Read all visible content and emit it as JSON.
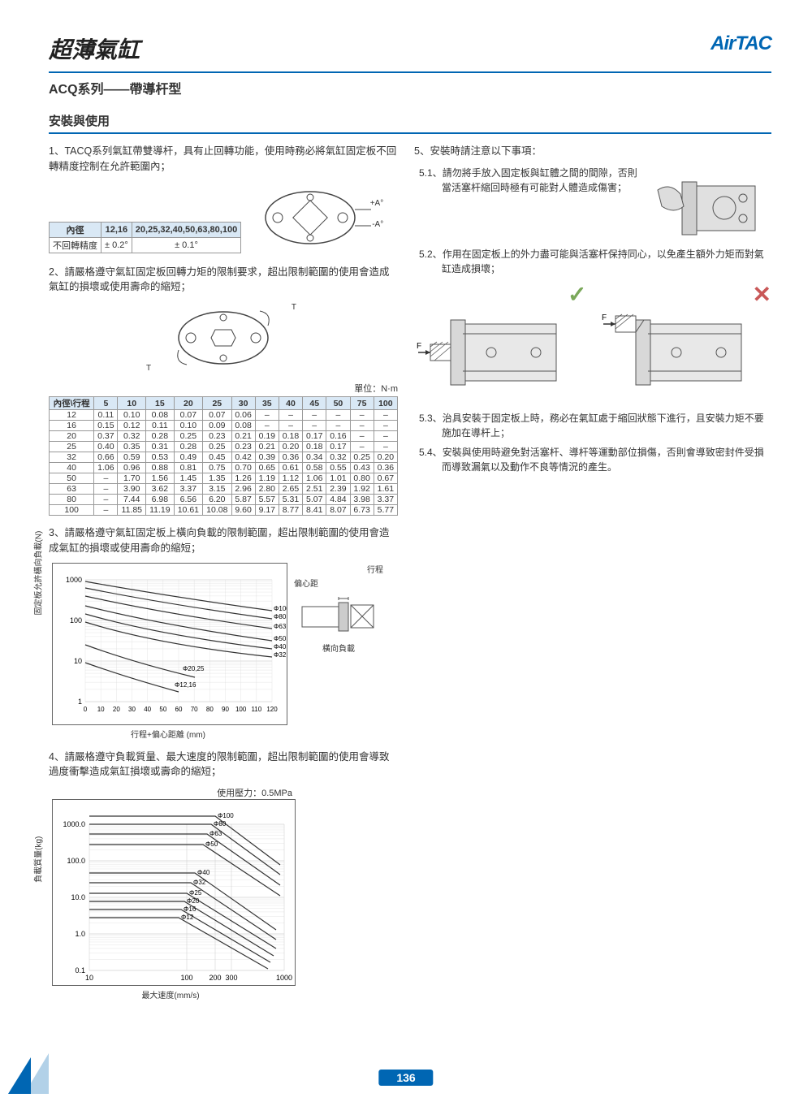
{
  "header": {
    "title": "超薄氣缸",
    "logo": "AirTAC"
  },
  "subtitle": "ACQ系列——帶導杆型",
  "section_title": "安裝與使用",
  "item1": {
    "num": "1、",
    "text": "TACQ系列氣缸帶雙導杆，具有止回轉功能，使用時務必將氣缸固定板不回轉精度控制在允許範圍內；",
    "table": {
      "h1": "內徑",
      "c1": "12,16",
      "c2": "20,25,32,40,50,63,80,100",
      "r1": "不回轉精度",
      "v1": "± 0.2°",
      "v2": "± 0.1°"
    },
    "diag_labels": {
      "a_plus": "+A°",
      "a_minus": "-A°"
    }
  },
  "item2": {
    "num": "2、",
    "text": "請嚴格遵守氣缸固定板回轉力矩的限制要求，超出限制範圍的使用會造成氣缸的損壞或使用壽命的縮短；",
    "unit": "單位：N·m",
    "diag_labels": {
      "t1": "T",
      "t2": "T"
    },
    "table": {
      "header": [
        "內徑\\行程",
        "5",
        "10",
        "15",
        "20",
        "25",
        "30",
        "35",
        "40",
        "45",
        "50",
        "75",
        "100"
      ],
      "rows": [
        [
          "12",
          "0.11",
          "0.10",
          "0.08",
          "0.07",
          "0.07",
          "0.06",
          "–",
          "–",
          "–",
          "–",
          "–",
          "–"
        ],
        [
          "16",
          "0.15",
          "0.12",
          "0.11",
          "0.10",
          "0.09",
          "0.08",
          "–",
          "–",
          "–",
          "–",
          "–",
          "–"
        ],
        [
          "20",
          "0.37",
          "0.32",
          "0.28",
          "0.25",
          "0.23",
          "0.21",
          "0.19",
          "0.18",
          "0.17",
          "0.16",
          "–",
          "–"
        ],
        [
          "25",
          "0.40",
          "0.35",
          "0.31",
          "0.28",
          "0.25",
          "0.23",
          "0.21",
          "0.20",
          "0.18",
          "0.17",
          "–",
          "–"
        ],
        [
          "32",
          "0.66",
          "0.59",
          "0.53",
          "0.49",
          "0.45",
          "0.42",
          "0.39",
          "0.36",
          "0.34",
          "0.32",
          "0.25",
          "0.20"
        ],
        [
          "40",
          "1.06",
          "0.96",
          "0.88",
          "0.81",
          "0.75",
          "0.70",
          "0.65",
          "0.61",
          "0.58",
          "0.55",
          "0.43",
          "0.36"
        ],
        [
          "50",
          "–",
          "1.70",
          "1.56",
          "1.45",
          "1.35",
          "1.26",
          "1.19",
          "1.12",
          "1.06",
          "1.01",
          "0.80",
          "0.67"
        ],
        [
          "63",
          "–",
          "3.90",
          "3.62",
          "3.37",
          "3.15",
          "2.96",
          "2.80",
          "2.65",
          "2.51",
          "2.39",
          "1.92",
          "1.61"
        ],
        [
          "80",
          "–",
          "7.44",
          "6.98",
          "6.56",
          "6.20",
          "5.87",
          "5.57",
          "5.31",
          "5.07",
          "4.84",
          "3.98",
          "3.37"
        ],
        [
          "100",
          "–",
          "11.85",
          "11.19",
          "10.61",
          "10.08",
          "9.60",
          "9.17",
          "8.77",
          "8.41",
          "8.07",
          "6.73",
          "5.77"
        ]
      ]
    }
  },
  "item3": {
    "num": "3、",
    "text": "請嚴格遵守氣缸固定板上橫向負載的限制範圍，超出限制範圍的使用會造成氣缸的損壞或使用壽命的縮短；",
    "chart": {
      "type": "line-log",
      "ylabel": "固定板允許橫向負載(N)",
      "xlabel": "行程+偏心距離 (mm)",
      "y_ticks": [
        "1",
        "10",
        "100",
        "1000"
      ],
      "x_ticks": [
        "0",
        "10",
        "20",
        "30",
        "40",
        "50",
        "60",
        "70",
        "80",
        "90",
        "100",
        "110",
        "120"
      ],
      "series_labels": [
        "Φ100",
        "Φ80",
        "Φ63",
        "Φ50",
        "Φ40",
        "Φ32",
        "Φ20,25",
        "Φ12,16"
      ],
      "side_labels": {
        "stroke": "行程",
        "ecc": "偏心距",
        "lateral": "橫向負載"
      },
      "grid_color": "#bbb",
      "line_color": "#333"
    }
  },
  "item4": {
    "num": "4、",
    "text": "請嚴格遵守負載質量、最大速度的限制範圍，超出限制範圍的使用會導致過度衝擊造成氣缸損壞或壽命的縮短；",
    "chart": {
      "type": "line-loglog",
      "header": "使用壓力：0.5MPa",
      "ylabel": "負載質量(kg)",
      "xlabel": "最大速度(mm/s)",
      "y_ticks": [
        "0.1",
        "1.0",
        "10.0",
        "100.0",
        "1000.0"
      ],
      "x_ticks": [
        "10",
        "100",
        "200",
        "300",
        "1000"
      ],
      "series_labels": [
        "Φ100",
        "Φ80",
        "Φ63",
        "Φ50",
        "Φ40",
        "Φ32",
        "Φ25",
        "Φ20",
        "Φ16",
        "Φ12"
      ],
      "grid_color": "#bbb",
      "line_color": "#333"
    }
  },
  "item5": {
    "num": "5、",
    "text": "安裝時請注意以下事項：",
    "sub1": {
      "num": "5.1、",
      "text": "請勿將手放入固定板與缸體之間的間隙，否則當活塞杆縮回時極有可能對人體造成傷害；"
    },
    "sub2": {
      "num": "5.2、",
      "text": "作用在固定板上的外力盡可能與活塞杆保持同心，以免產生額外力矩而對氣缸造成損壞；",
      "f_label": "F"
    },
    "sub3": {
      "num": "5.3、",
      "text": "治具安裝于固定板上時，務必在氣缸處于縮回狀態下進行，且安裝力矩不要施加在導杆上；"
    },
    "sub4": {
      "num": "5.4、",
      "text": "安裝與使用時避免對活塞杆、導杆等運動部位損傷，否則會導致密封件受損而導致漏氣以及動作不良等情況的產生。"
    }
  },
  "page_number": "136"
}
